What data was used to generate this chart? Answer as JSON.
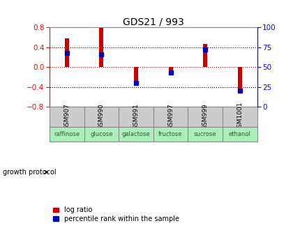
{
  "title": "GDS21 / 993",
  "samples": [
    "GSM907",
    "GSM990",
    "GSM991",
    "GSM997",
    "GSM999",
    "GSM1001"
  ],
  "conditions": [
    "raffinose",
    "glucose",
    "galactose",
    "fructose",
    "sucrose",
    "ethanol"
  ],
  "log_ratios": [
    0.58,
    0.79,
    -0.33,
    -0.07,
    0.46,
    -0.5
  ],
  "percentile_ranks": [
    68,
    66,
    30,
    43,
    72,
    20
  ],
  "bar_color": "#cc0000",
  "dot_color": "#0000bb",
  "ylim_left": [
    -0.8,
    0.8
  ],
  "ylim_right": [
    0,
    100
  ],
  "yticks_left": [
    -0.8,
    -0.4,
    0,
    0.4,
    0.8
  ],
  "yticks_right": [
    0,
    25,
    50,
    75,
    100
  ],
  "hline_color": "#cc0000",
  "dotted_color": "#000000",
  "bg_color": "#ffffff",
  "plot_bg": "#ffffff",
  "sample_box_color": "#cccccc",
  "condition_box_color": "#aaeebb",
  "growth_protocol_label": "growth protocol",
  "legend_log_ratio": "log ratio",
  "legend_percentile": "percentile rank within the sample",
  "bar_width": 0.12,
  "dot_size": 25
}
